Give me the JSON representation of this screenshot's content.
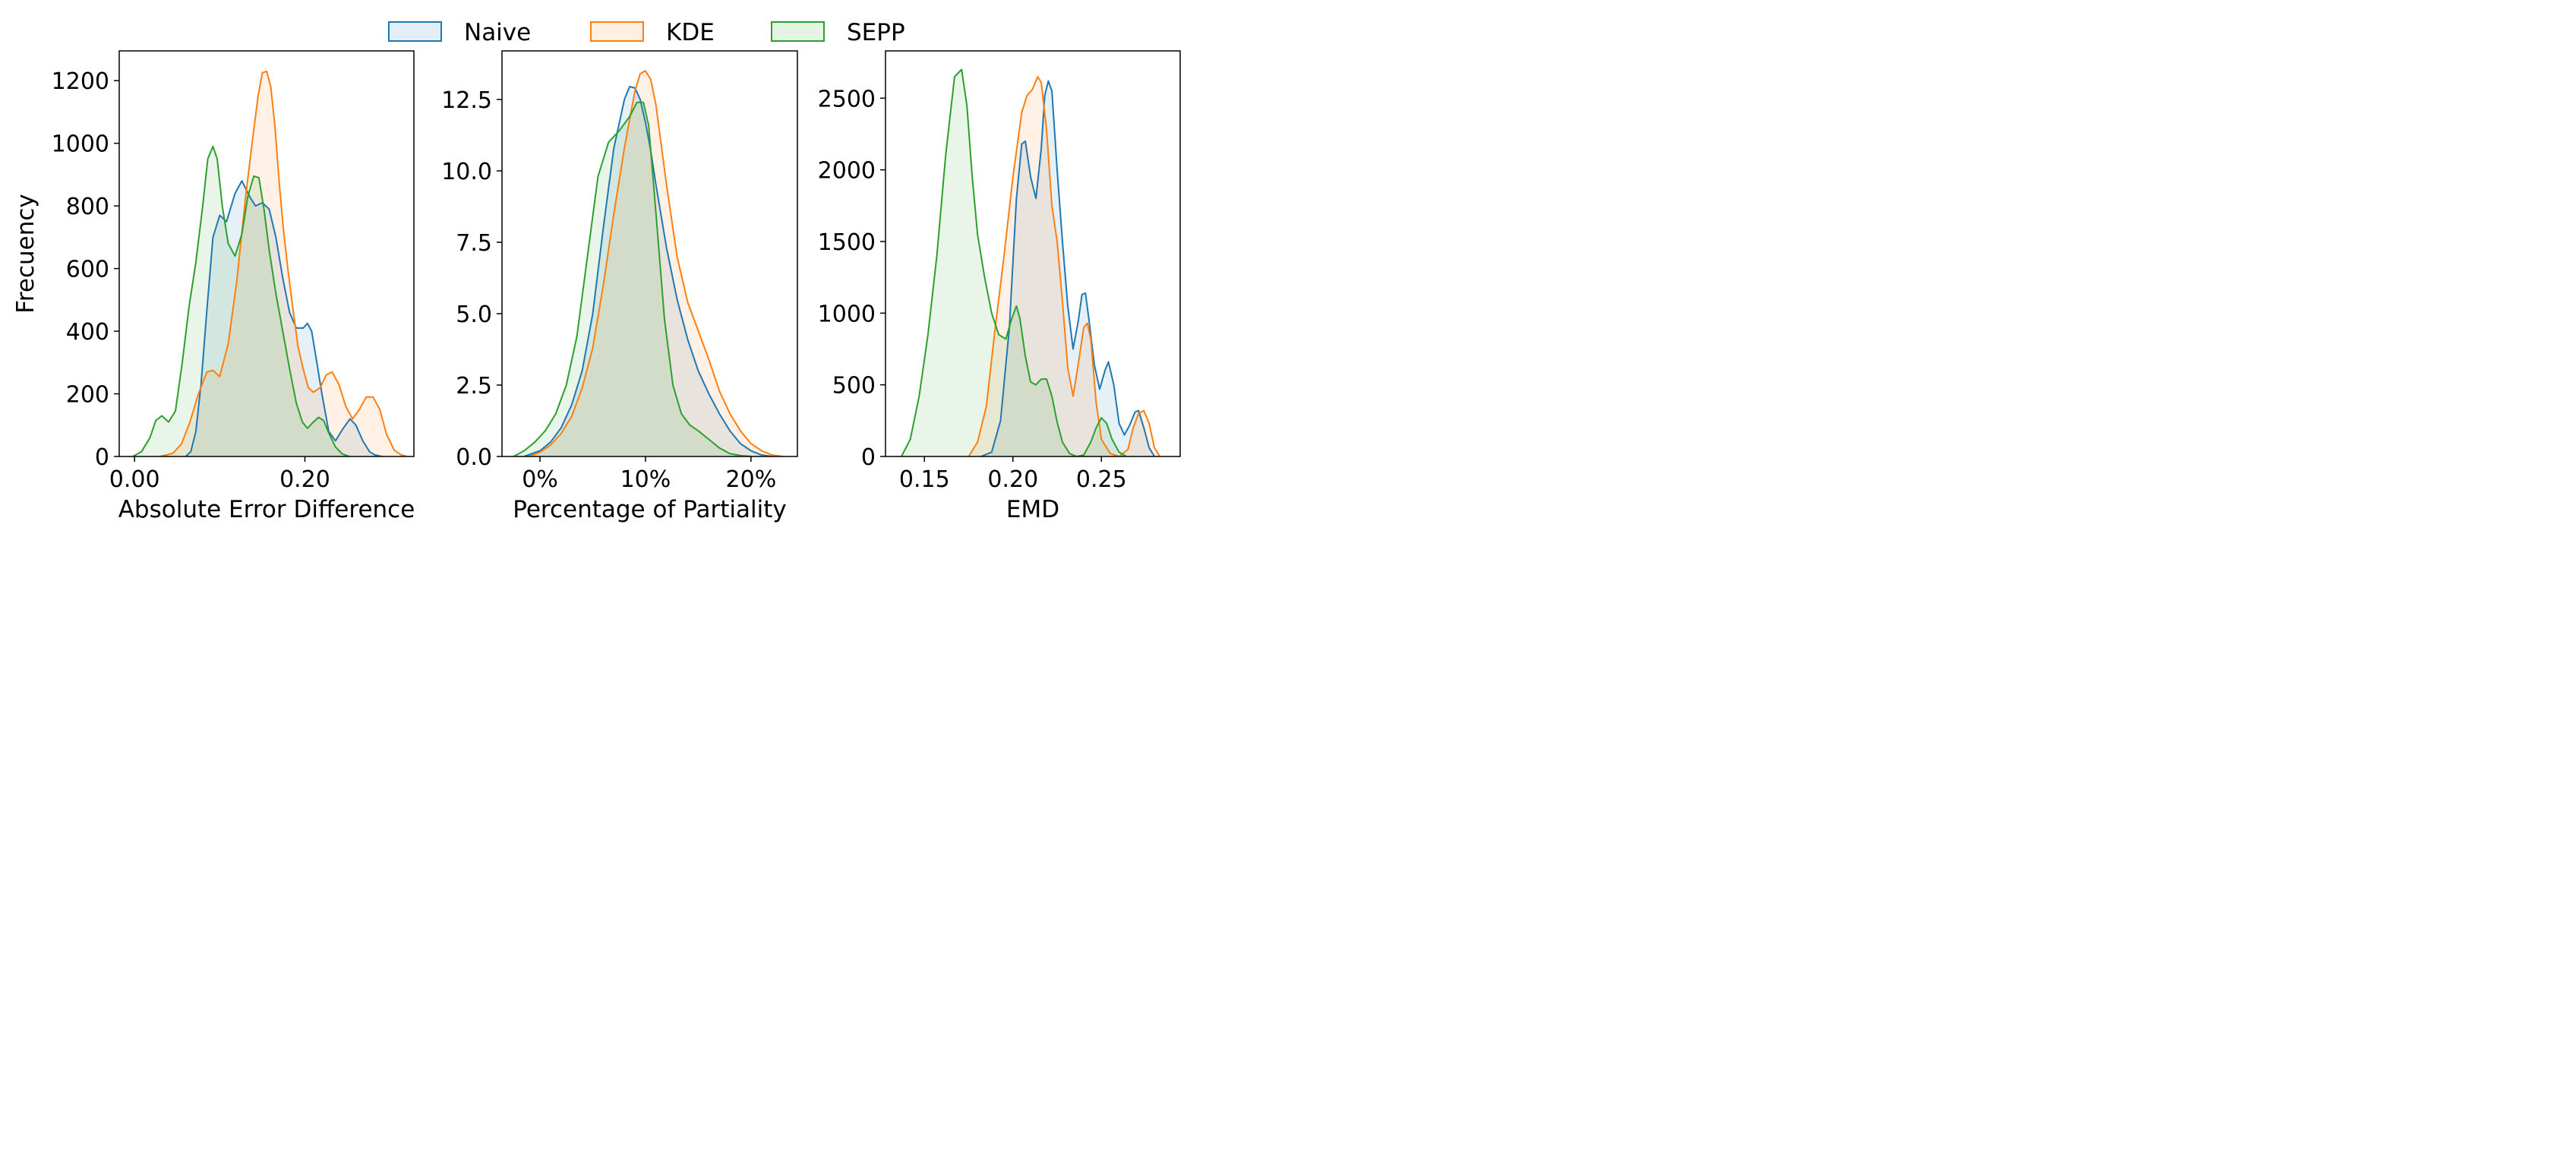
{
  "legend": {
    "items": [
      {
        "label": "Naive",
        "color": "#1f77b4"
      },
      {
        "label": "KDE",
        "color": "#ff7f0e"
      },
      {
        "label": "SEPP",
        "color": "#2ca02c"
      }
    ]
  },
  "chart_data": [
    {
      "type": "area",
      "subtype": "kde-density",
      "xlabel": "Absolute Error Difference",
      "ylabel": "Frecuency",
      "xlim": [
        -0.018,
        0.328
      ],
      "ylim": [
        0,
        1295
      ],
      "xticks": [
        {
          "value": 0.0,
          "label": "0.00"
        },
        {
          "value": 0.2,
          "label": "0.20"
        }
      ],
      "yticks": [
        {
          "value": 0,
          "label": "0"
        },
        {
          "value": 200,
          "label": "200"
        },
        {
          "value": 400,
          "label": "400"
        },
        {
          "value": 600,
          "label": "600"
        },
        {
          "value": 800,
          "label": "800"
        },
        {
          "value": 1000,
          "label": "1000"
        },
        {
          "value": 1200,
          "label": "1200"
        }
      ],
      "series": [
        {
          "name": "Naive",
          "x": [
            0.06,
            0.066,
            0.072,
            0.078,
            0.085,
            0.092,
            0.1,
            0.108,
            0.118,
            0.126,
            0.135,
            0.142,
            0.15,
            0.158,
            0.166,
            0.174,
            0.182,
            0.19,
            0.198,
            0.203,
            0.208,
            0.214,
            0.22,
            0.228,
            0.236,
            0.245,
            0.253,
            0.26,
            0.268,
            0.276,
            0.282,
            0.29
          ],
          "y": [
            0,
            15,
            80,
            230,
            470,
            700,
            770,
            750,
            840,
            880,
            830,
            800,
            810,
            790,
            700,
            570,
            460,
            410,
            410,
            425,
            400,
            300,
            200,
            80,
            50,
            90,
            120,
            100,
            50,
            15,
            5,
            0
          ]
        },
        {
          "name": "KDE",
          "x": [
            0.03,
            0.045,
            0.055,
            0.065,
            0.075,
            0.085,
            0.092,
            0.1,
            0.11,
            0.12,
            0.13,
            0.138,
            0.145,
            0.15,
            0.155,
            0.16,
            0.165,
            0.17,
            0.175,
            0.18,
            0.186,
            0.192,
            0.198,
            0.204,
            0.21,
            0.218,
            0.225,
            0.232,
            0.24,
            0.248,
            0.256,
            0.264,
            0.272,
            0.28,
            0.288,
            0.296,
            0.305,
            0.313,
            0.32
          ],
          "y": [
            0,
            10,
            40,
            110,
            200,
            270,
            275,
            255,
            360,
            560,
            820,
            1000,
            1150,
            1225,
            1230,
            1180,
            1050,
            870,
            720,
            600,
            470,
            350,
            280,
            220,
            205,
            220,
            260,
            270,
            230,
            160,
            120,
            150,
            190,
            190,
            150,
            70,
            20,
            5,
            0
          ]
        },
        {
          "name": "SEPP",
          "x": [
            -0.002,
            0.008,
            0.018,
            0.025,
            0.032,
            0.04,
            0.048,
            0.056,
            0.064,
            0.072,
            0.08,
            0.086,
            0.092,
            0.097,
            0.103,
            0.11,
            0.118,
            0.126,
            0.133,
            0.14,
            0.146,
            0.152,
            0.158,
            0.166,
            0.174,
            0.182,
            0.19,
            0.197,
            0.203,
            0.21,
            0.216,
            0.222,
            0.228,
            0.236,
            0.244,
            0.252
          ],
          "y": [
            0,
            15,
            60,
            115,
            130,
            110,
            145,
            300,
            480,
            620,
            800,
            950,
            990,
            950,
            800,
            680,
            640,
            710,
            830,
            895,
            890,
            790,
            660,
            520,
            400,
            280,
            170,
            110,
            90,
            110,
            125,
            115,
            75,
            30,
            8,
            0
          ]
        }
      ]
    },
    {
      "type": "area",
      "subtype": "kde-density",
      "xlabel": "Percentage of Partiality",
      "ylabel": "",
      "xlim": [
        -0.036,
        0.244
      ],
      "ylim": [
        0,
        14.2
      ],
      "xticks": [
        {
          "value": 0.0,
          "label": "0%"
        },
        {
          "value": 0.1,
          "label": "10%"
        },
        {
          "value": 0.2,
          "label": "20%"
        }
      ],
      "yticks": [
        {
          "value": 0,
          "label": "0.0"
        },
        {
          "value": 2.5,
          "label": "2.5"
        },
        {
          "value": 5,
          "label": "5.0"
        },
        {
          "value": 7.5,
          "label": "7.5"
        },
        {
          "value": 10,
          "label": "10.0"
        },
        {
          "value": 12.5,
          "label": "12.5"
        }
      ],
      "series": [
        {
          "name": "Naive",
          "x": [
            -0.015,
            0.0,
            0.01,
            0.02,
            0.03,
            0.04,
            0.05,
            0.06,
            0.07,
            0.08,
            0.085,
            0.09,
            0.095,
            0.1,
            0.105,
            0.11,
            0.12,
            0.13,
            0.14,
            0.15,
            0.16,
            0.17,
            0.18,
            0.19,
            0.2,
            0.21,
            0.22
          ],
          "y": [
            0,
            0.2,
            0.5,
            1.0,
            1.8,
            3.0,
            5.0,
            8.0,
            10.8,
            12.5,
            12.95,
            12.9,
            12.5,
            11.7,
            10.7,
            9.5,
            7.3,
            5.5,
            4.1,
            3.0,
            2.2,
            1.5,
            0.9,
            0.45,
            0.2,
            0.05,
            0
          ]
        },
        {
          "name": "KDE",
          "x": [
            -0.01,
            0.0,
            0.01,
            0.02,
            0.03,
            0.04,
            0.05,
            0.06,
            0.07,
            0.08,
            0.09,
            0.095,
            0.1,
            0.105,
            0.11,
            0.12,
            0.13,
            0.14,
            0.15,
            0.16,
            0.17,
            0.18,
            0.19,
            0.2,
            0.21,
            0.22,
            0.23
          ],
          "y": [
            0,
            0.15,
            0.4,
            0.8,
            1.4,
            2.4,
            3.8,
            6.0,
            8.5,
            10.8,
            12.8,
            13.4,
            13.5,
            13.2,
            12.3,
            9.5,
            7.0,
            5.4,
            4.4,
            3.4,
            2.3,
            1.5,
            0.9,
            0.45,
            0.2,
            0.05,
            0
          ]
        },
        {
          "name": "SEPP",
          "x": [
            -0.025,
            -0.015,
            -0.005,
            0.005,
            0.015,
            0.025,
            0.035,
            0.045,
            0.055,
            0.065,
            0.075,
            0.085,
            0.092,
            0.098,
            0.103,
            0.11,
            0.118,
            0.126,
            0.134,
            0.142,
            0.15,
            0.16,
            0.17,
            0.18,
            0.19,
            0.2
          ],
          "y": [
            0,
            0.2,
            0.5,
            0.9,
            1.5,
            2.5,
            4.2,
            7.0,
            9.8,
            11.0,
            11.4,
            11.9,
            12.4,
            12.4,
            11.6,
            8.5,
            4.8,
            2.5,
            1.5,
            1.1,
            0.9,
            0.6,
            0.3,
            0.1,
            0.03,
            0
          ]
        }
      ]
    },
    {
      "type": "area",
      "subtype": "kde-density",
      "xlabel": "EMD",
      "ylabel": "",
      "xlim": [
        0.128,
        0.2945
      ],
      "ylim": [
        0,
        2830
      ],
      "xticks": [
        {
          "value": 0.15,
          "label": "0.15"
        },
        {
          "value": 0.2,
          "label": "0.20"
        },
        {
          "value": 0.25,
          "label": "0.25"
        }
      ],
      "yticks": [
        {
          "value": 0,
          "label": "0"
        },
        {
          "value": 500,
          "label": "500"
        },
        {
          "value": 1000,
          "label": "1000"
        },
        {
          "value": 1500,
          "label": "1500"
        },
        {
          "value": 2000,
          "label": "2000"
        },
        {
          "value": 2500,
          "label": "2500"
        }
      ],
      "series": [
        {
          "name": "Naive",
          "x": [
            0.182,
            0.188,
            0.193,
            0.198,
            0.202,
            0.205,
            0.207,
            0.21,
            0.213,
            0.216,
            0.218,
            0.22,
            0.222,
            0.225,
            0.228,
            0.231,
            0.234,
            0.237,
            0.239,
            0.241,
            0.243,
            0.246,
            0.249,
            0.252,
            0.254,
            0.257,
            0.26,
            0.263,
            0.266,
            0.269,
            0.271,
            0.274,
            0.277,
            0.28
          ],
          "y": [
            0,
            30,
            250,
            900,
            1800,
            2180,
            2200,
            1950,
            1800,
            2150,
            2520,
            2620,
            2550,
            2000,
            1500,
            1050,
            750,
            950,
            1130,
            1140,
            950,
            640,
            470,
            600,
            660,
            500,
            230,
            150,
            220,
            310,
            320,
            200,
            60,
            0
          ]
        },
        {
          "name": "KDE",
          "x": [
            0.175,
            0.18,
            0.185,
            0.19,
            0.195,
            0.2,
            0.205,
            0.208,
            0.211,
            0.214,
            0.216,
            0.219,
            0.222,
            0.225,
            0.228,
            0.231,
            0.234,
            0.237,
            0.24,
            0.242,
            0.244,
            0.247,
            0.25,
            0.255,
            0.26,
            0.265,
            0.268,
            0.271,
            0.274,
            0.277,
            0.28,
            0.283
          ],
          "y": [
            0,
            100,
            350,
            900,
            1400,
            1950,
            2400,
            2520,
            2560,
            2650,
            2610,
            2280,
            1750,
            1500,
            1080,
            620,
            420,
            650,
            900,
            930,
            820,
            380,
            120,
            20,
            0,
            50,
            200,
            300,
            320,
            230,
            60,
            0
          ]
        },
        {
          "name": "SEPP",
          "x": [
            0.137,
            0.142,
            0.147,
            0.152,
            0.157,
            0.162,
            0.167,
            0.171,
            0.174,
            0.177,
            0.18,
            0.184,
            0.188,
            0.192,
            0.196,
            0.199,
            0.202,
            0.204,
            0.207,
            0.21,
            0.213,
            0.216,
            0.219,
            0.222,
            0.225,
            0.228,
            0.232,
            0.236,
            0.24,
            0.244,
            0.247,
            0.25,
            0.253,
            0.256,
            0.26,
            0.264
          ],
          "y": [
            0,
            120,
            420,
            850,
            1400,
            2100,
            2650,
            2700,
            2450,
            1950,
            1550,
            1250,
            1000,
            850,
            820,
            950,
            1050,
            960,
            700,
            520,
            500,
            540,
            540,
            420,
            240,
            100,
            20,
            0,
            10,
            100,
            200,
            270,
            230,
            120,
            30,
            0
          ]
        }
      ]
    }
  ]
}
